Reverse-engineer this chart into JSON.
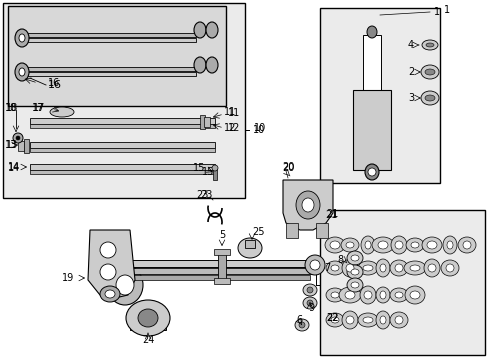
{
  "bg_color": "#ffffff",
  "fg_color": "#000000",
  "gray_light": "#e8e8e8",
  "gray_mid": "#cccccc",
  "gray_dark": "#999999",
  "figsize": [
    4.89,
    3.6
  ],
  "dpi": 100
}
